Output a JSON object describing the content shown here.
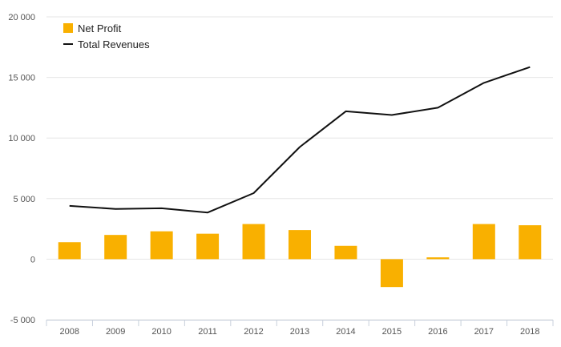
{
  "chart_data": {
    "type": "bar",
    "categories": [
      "2008",
      "2009",
      "2010",
      "2011",
      "2012",
      "2013",
      "2014",
      "2015",
      "2016",
      "2017",
      "2018"
    ],
    "series": [
      {
        "name": "Net Profit",
        "kind": "bar",
        "color": "#F9B000",
        "values": [
          1400,
          2000,
          2300,
          2100,
          2900,
          2400,
          1100,
          -2300,
          150,
          2900,
          2800
        ]
      },
      {
        "name": "Total Revenues",
        "kind": "line",
        "color": "#111111",
        "values": [
          4400,
          4150,
          4200,
          3850,
          5450,
          9250,
          12200,
          11900,
          12500,
          14550,
          15850
        ]
      }
    ],
    "ylim": [
      -5000,
      20000
    ],
    "yticks": [
      -5000,
      0,
      5000,
      10000,
      15000,
      20000
    ],
    "ytick_labels": [
      "-5 000",
      "0",
      "5 000",
      "10 000",
      "15 000",
      "20 000"
    ],
    "grid": true,
    "legend": "top-left"
  }
}
